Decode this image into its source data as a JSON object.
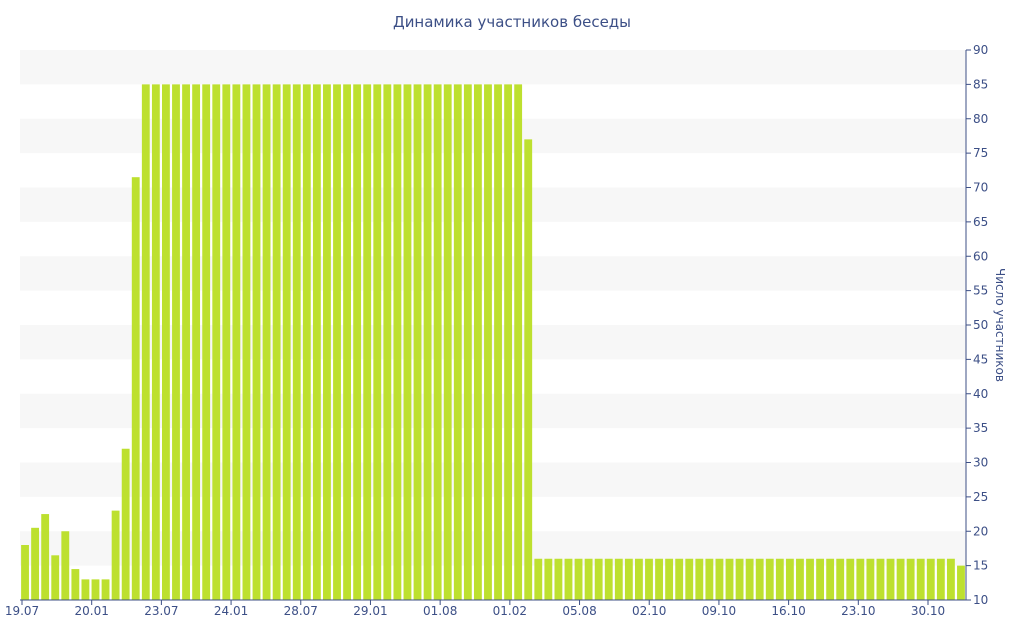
{
  "chart_data": {
    "type": "bar",
    "title": "Динамика участников беседы",
    "ylabel": "Число участников",
    "ylim": [
      10,
      90
    ],
    "y_ticks": [
      10,
      15,
      20,
      25,
      30,
      35,
      40,
      45,
      50,
      55,
      60,
      65,
      70,
      75,
      80,
      85,
      90
    ],
    "x_tick_labels": [
      "19.07",
      "20.01",
      "23.07",
      "24.01",
      "28.07",
      "29.01",
      "01.08",
      "01.02",
      "05.08",
      "02.10",
      "09.10",
      "16.10",
      "23.10",
      "30.10"
    ],
    "grid": "alternating horizontal bands",
    "colors": {
      "bar": "#bde02f",
      "band": "#f7f7f7",
      "text": "#3c4f86",
      "axis": "#3c4f86"
    },
    "values": [
      18,
      20.5,
      22.5,
      16.5,
      20,
      14.5,
      13,
      13,
      13,
      23,
      32,
      71.5,
      85,
      85,
      85,
      85,
      85,
      85,
      85,
      85,
      85,
      85,
      85,
      85,
      85,
      85,
      85,
      85,
      85,
      85,
      85,
      85,
      85,
      85,
      85,
      85,
      85,
      85,
      85,
      85,
      85,
      85,
      85,
      85,
      85,
      85,
      85,
      85,
      85,
      85,
      77,
      16,
      16,
      16,
      16,
      16,
      16,
      16,
      16,
      16,
      16,
      16,
      16,
      16,
      16,
      16,
      16,
      16,
      16,
      16,
      16,
      16,
      16,
      16,
      16,
      16,
      16,
      16,
      16,
      16,
      16,
      16,
      16,
      16,
      16,
      16,
      16,
      16,
      16,
      16,
      16,
      16,
      16,
      15
    ]
  }
}
